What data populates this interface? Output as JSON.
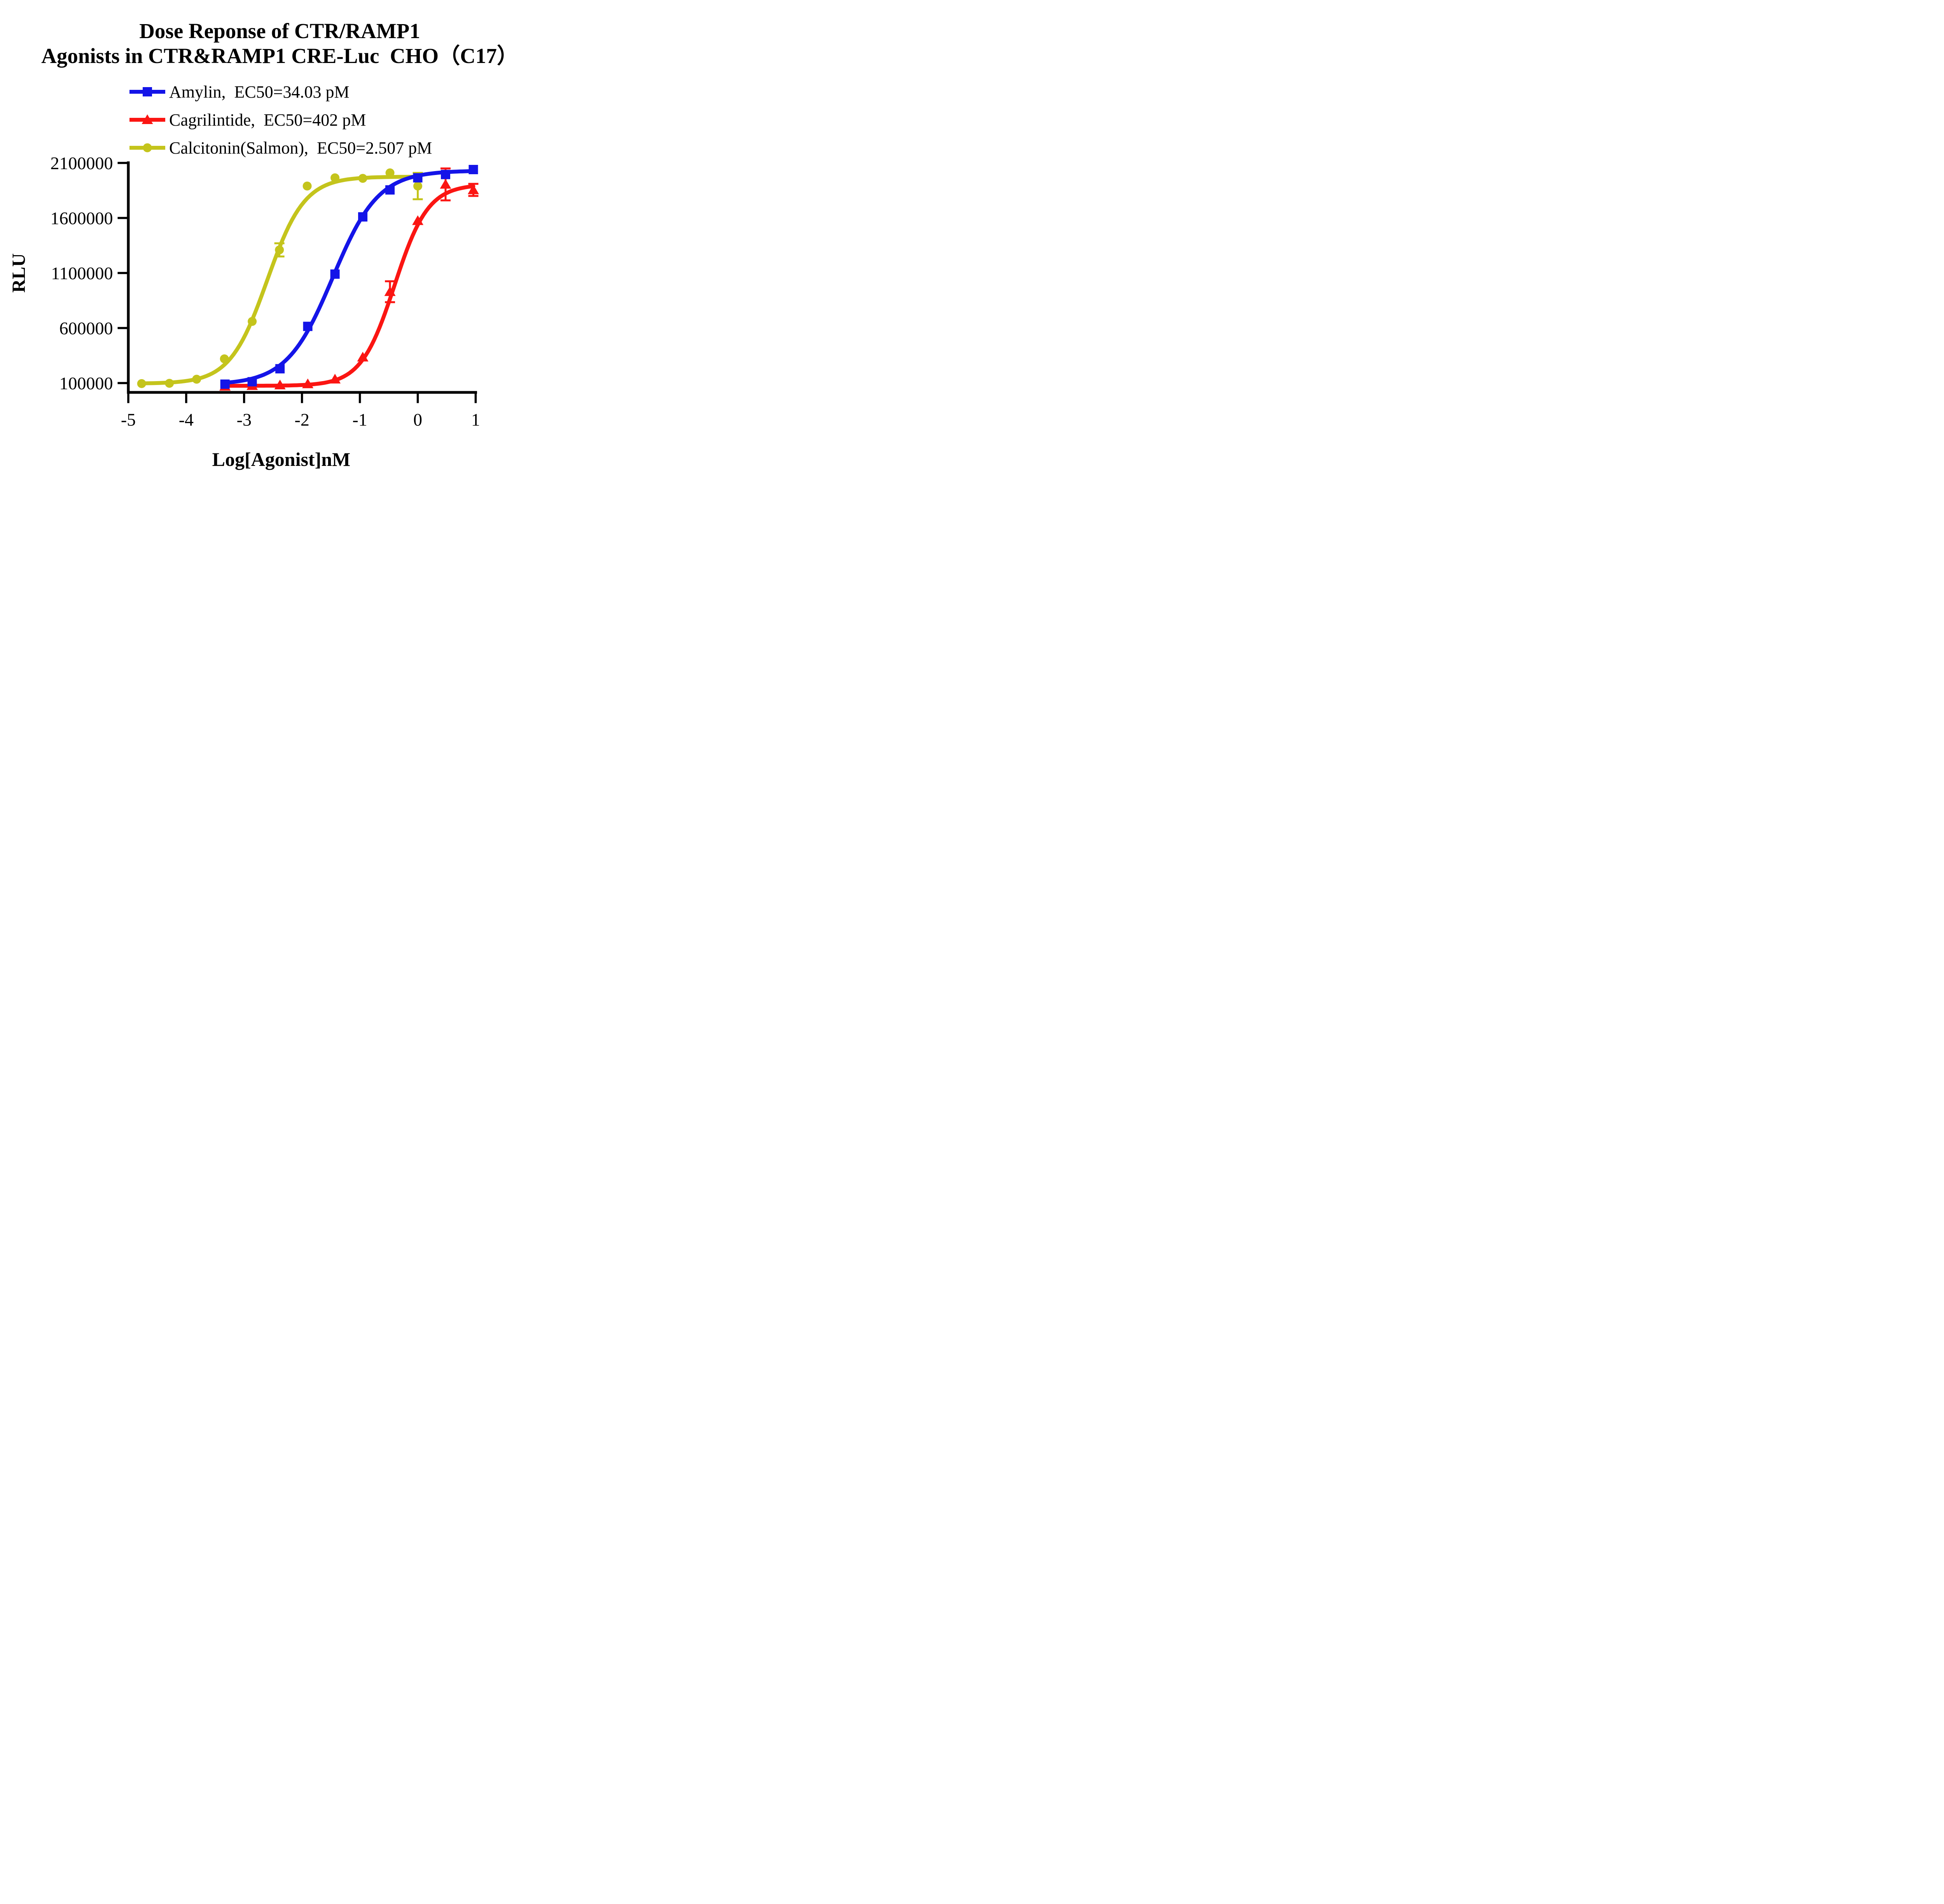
{
  "title": {
    "line1": "Dose Reponse of CTR/RAMP1",
    "line2": "Agonists in CTR&RAMP1 CRE-Luc  CHO（C17）"
  },
  "axes": {
    "x_label": "Log[Agonist]nM",
    "y_label": "RLU",
    "x_ticks": [
      -5,
      -4,
      -3,
      -2,
      -1,
      0,
      1
    ],
    "y_ticks": [
      100000,
      600000,
      1100000,
      1600000,
      2100000
    ],
    "x_range": [
      -5,
      1
    ],
    "y_range": [
      100000,
      2100000
    ]
  },
  "chart_data": {
    "type": "line",
    "title": "Dose Reponse of CTR/RAMP1 Agonists in CTR&RAMP1 CRE-Luc  CHO（C17）",
    "xlabel": "Log[Agonist]nM",
    "ylabel": "RLU",
    "xlim": [
      -5,
      1
    ],
    "ylim": [
      100000,
      2100000
    ],
    "grid": false,
    "legend_position": "top",
    "series": [
      {
        "name": "Amylin",
        "legend_label": "Amylin,  EC50=34.03 pM",
        "ec50_label": "EC50=34.03 pM",
        "color": "#1414E8",
        "marker": "square",
        "points": [
          [
            -3.33,
            90000
          ],
          [
            -2.86,
            112000
          ],
          [
            -2.38,
            230000
          ],
          [
            -1.9,
            615000
          ],
          [
            -1.43,
            1090000
          ],
          [
            -0.95,
            1610000
          ],
          [
            -0.48,
            1855000
          ],
          [
            0.0,
            1965000
          ],
          [
            0.48,
            1995000
          ],
          [
            0.96,
            2040000
          ]
        ],
        "fit": {
          "bottom": 85000,
          "top": 2030000,
          "logEC50": -1.47,
          "hill": 1.1,
          "range": [
            -3.33,
            0.96
          ]
        }
      },
      {
        "name": "Cagrilintide",
        "legend_label": "Cagrilintide,  EC50=402 pM",
        "ec50_label": "EC50=402 pM",
        "color": "#FB1512",
        "marker": "triangle",
        "points": [
          [
            -3.33,
            70000
          ],
          [
            -2.86,
            76000
          ],
          [
            -2.38,
            82000
          ],
          [
            -1.9,
            92000
          ],
          [
            -1.43,
            135000
          ],
          [
            -0.95,
            335000
          ],
          [
            -0.48,
            930000,
            95000
          ],
          [
            0.0,
            1575000
          ],
          [
            0.48,
            1905000,
            145000
          ],
          [
            0.96,
            1855000,
            55000
          ]
        ],
        "fit": {
          "bottom": 75000,
          "top": 1905000,
          "logEC50": -0.4,
          "hill": 1.5,
          "range": [
            -3.33,
            0.96
          ]
        }
      },
      {
        "name": "Calcitonin(Salmon)",
        "legend_label": "Calcitonin(Salmon),  EC50=2.507 pM",
        "ec50_label": "EC50=2.507 pM",
        "color": "#C4C41C",
        "marker": "circle",
        "points": [
          [
            -4.77,
            95000
          ],
          [
            -4.29,
            98000
          ],
          [
            -3.82,
            135000
          ],
          [
            -3.34,
            320000
          ],
          [
            -2.86,
            660000
          ],
          [
            -2.39,
            1310000,
            60000
          ],
          [
            -1.91,
            1890000
          ],
          [
            -1.43,
            1965000
          ],
          [
            -0.95,
            1960000
          ],
          [
            -0.48,
            2010000
          ],
          [
            0.0,
            1890000,
            120000
          ]
        ],
        "fit": {
          "bottom": 95000,
          "top": 1975000,
          "logEC50": -2.6,
          "hill": 1.35,
          "range": [
            -4.77,
            0.0
          ]
        }
      }
    ]
  }
}
